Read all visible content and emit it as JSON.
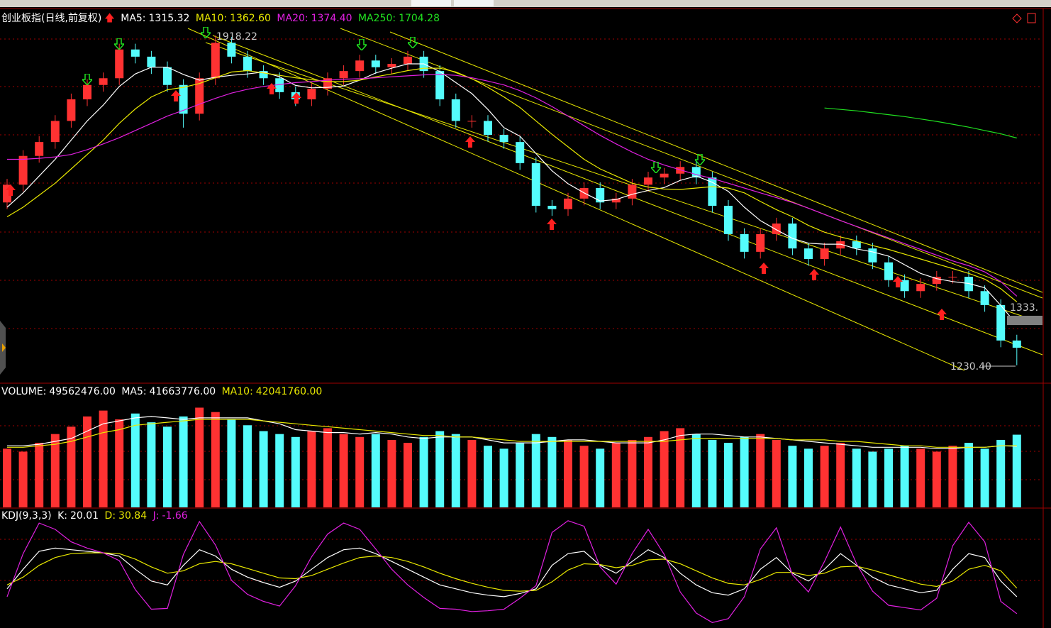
{
  "chart_data": [
    {
      "type": "candlestick",
      "title": "创业板指(日线,前复权)",
      "open": [
        1570,
        1607,
        1667,
        1696,
        1740,
        1785,
        1815,
        1829,
        1889,
        1874,
        1852,
        1815,
        1755,
        1829,
        1903,
        1874,
        1844,
        1829,
        1800,
        1785,
        1807,
        1829,
        1844,
        1866,
        1852,
        1859,
        1874,
        1844,
        1785,
        1740,
        1740,
        1711,
        1696,
        1652,
        1563,
        1556,
        1578,
        1600,
        1570,
        1578,
        1607,
        1622,
        1630,
        1644,
        1622,
        1563,
        1504,
        1467,
        1504,
        1526,
        1474,
        1452,
        1474,
        1489,
        1474,
        1445,
        1408,
        1385,
        1400,
        1415,
        1415,
        1385,
        1356,
        1282
      ],
      "high": [
        1619,
        1679,
        1708,
        1752,
        1797,
        1827,
        1841,
        1901,
        1901,
        1886,
        1864,
        1827,
        1841,
        1918.22,
        1915,
        1886,
        1856,
        1841,
        1812,
        1819,
        1841,
        1856,
        1878,
        1878,
        1871,
        1886,
        1886,
        1856,
        1797,
        1752,
        1752,
        1723,
        1708,
        1664,
        1575,
        1590,
        1612,
        1612,
        1590,
        1619,
        1634,
        1642,
        1656,
        1656,
        1634,
        1575,
        1516,
        1516,
        1538,
        1538,
        1486,
        1486,
        1501,
        1501,
        1486,
        1457,
        1420,
        1412,
        1427,
        1427,
        1427,
        1397,
        1368,
        1294
      ],
      "low": [
        1556,
        1593,
        1653,
        1682,
        1726,
        1771,
        1801,
        1815,
        1860,
        1838,
        1801,
        1726,
        1741,
        1815,
        1860,
        1830,
        1815,
        1786,
        1771,
        1771,
        1793,
        1815,
        1830,
        1838,
        1838,
        1845,
        1830,
        1771,
        1726,
        1726,
        1697,
        1682,
        1638,
        1549,
        1542,
        1542,
        1564,
        1556,
        1556,
        1564,
        1593,
        1608,
        1616,
        1608,
        1549,
        1490,
        1453,
        1453,
        1490,
        1460,
        1438,
        1438,
        1460,
        1460,
        1431,
        1394,
        1371,
        1371,
        1386,
        1401,
        1371,
        1342,
        1268,
        1230.4
      ],
      "close": [
        1607,
        1667,
        1696,
        1740,
        1785,
        1815,
        1829,
        1889,
        1874,
        1852,
        1815,
        1755,
        1829,
        1903,
        1874,
        1844,
        1829,
        1800,
        1785,
        1807,
        1829,
        1844,
        1866,
        1852,
        1859,
        1874,
        1844,
        1785,
        1740,
        1740,
        1711,
        1696,
        1652,
        1563,
        1556,
        1578,
        1600,
        1570,
        1578,
        1607,
        1622,
        1630,
        1644,
        1622,
        1563,
        1504,
        1467,
        1504,
        1526,
        1474,
        1452,
        1474,
        1489,
        1474,
        1445,
        1408,
        1385,
        1400,
        1415,
        1415,
        1385,
        1356,
        1282,
        1267
      ],
      "up_color": "#ff3232",
      "down_color": "#54fcfc",
      "ylim": [
        1193,
        1970
      ],
      "series": [
        {
          "name": "MA5:",
          "color": "#ffffff",
          "values": [
            1560,
            1590,
            1625,
            1660,
            1700,
            1740,
            1773,
            1812,
            1838,
            1852,
            1852,
            1837,
            1825,
            1831,
            1835,
            1838,
            1842,
            1832,
            1814,
            1809,
            1810,
            1813,
            1825,
            1840,
            1850,
            1859,
            1859,
            1843,
            1820,
            1797,
            1764,
            1726,
            1708,
            1672,
            1636,
            1609,
            1590,
            1573,
            1576,
            1587,
            1595,
            1601,
            1616,
            1625,
            1612,
            1593,
            1560,
            1532,
            1513,
            1495,
            1485,
            1483,
            1483,
            1473,
            1467,
            1458,
            1440,
            1422,
            1411,
            1405,
            1401,
            1392,
            1355,
            1315.32
          ]
        },
        {
          "name": "MA10:",
          "color": "#e8e800",
          "values": [
            1540,
            1560,
            1585,
            1610,
            1640,
            1670,
            1700,
            1735,
            1765,
            1790,
            1805,
            1810,
            1818,
            1830,
            1842,
            1845,
            1840,
            1835,
            1830,
            1826,
            1822,
            1822,
            1825,
            1832,
            1838,
            1845,
            1850,
            1850,
            1842,
            1828,
            1810,
            1790,
            1768,
            1740,
            1712,
            1686,
            1660,
            1640,
            1625,
            1610,
            1602,
            1598,
            1597,
            1600,
            1603,
            1600,
            1590,
            1572,
            1555,
            1540,
            1522,
            1508,
            1498,
            1490,
            1480,
            1472,
            1462,
            1452,
            1442,
            1432,
            1422,
            1410,
            1390,
            1362.6
          ]
        },
        {
          "name": "MA20:",
          "color": "#e020e0",
          "values": [
            1660,
            1660,
            1662,
            1665,
            1670,
            1680,
            1692,
            1705,
            1720,
            1735,
            1750,
            1762,
            1775,
            1787,
            1798,
            1806,
            1812,
            1816,
            1820,
            1822,
            1825,
            1827,
            1828,
            1830,
            1832,
            1834,
            1836,
            1837,
            1835,
            1830,
            1823,
            1815,
            1803,
            1788,
            1770,
            1750,
            1730,
            1710,
            1692,
            1675,
            1660,
            1648,
            1638,
            1628,
            1620,
            1610,
            1600,
            1590,
            1580,
            1570,
            1558,
            1545,
            1532,
            1520,
            1508,
            1496,
            1484,
            1472,
            1460,
            1448,
            1438,
            1425,
            1405,
            1374.4
          ]
        },
        {
          "name": "MA250:",
          "color": "#20e020",
          "values": [
            null,
            null,
            null,
            null,
            null,
            null,
            null,
            null,
            null,
            null,
            null,
            null,
            null,
            null,
            null,
            null,
            null,
            null,
            null,
            null,
            null,
            null,
            null,
            null,
            null,
            null,
            null,
            null,
            null,
            null,
            null,
            null,
            null,
            null,
            null,
            null,
            null,
            null,
            null,
            null,
            null,
            null,
            null,
            null,
            null,
            null,
            null,
            null,
            null,
            null,
            null,
            1767,
            1764,
            1761,
            1757,
            1753,
            1749,
            1744,
            1739,
            1733,
            1727,
            1720,
            1713,
            1704.28
          ]
        }
      ],
      "readouts": [
        1315.32,
        {
          "value": 1362.6,
          "label": "1362.60"
        },
        {
          "value": 1374.4,
          "label": "1374.40"
        },
        1704.28
      ],
      "annotations": [
        "1918.22",
        "1230.40",
        "1333."
      ]
    },
    {
      "type": "bar",
      "title": "VOLUME:",
      "values": [
        40000000,
        38000000,
        44000000,
        50000000,
        55000000,
        62000000,
        66000000,
        60000000,
        64000000,
        58000000,
        55000000,
        62000000,
        68000000,
        65000000,
        60000000,
        56000000,
        52000000,
        50000000,
        48000000,
        52000000,
        54000000,
        50000000,
        48000000,
        50000000,
        46000000,
        44000000,
        48000000,
        52000000,
        50000000,
        46000000,
        42000000,
        40000000,
        44000000,
        50000000,
        48000000,
        46000000,
        42000000,
        40000000,
        44000000,
        46000000,
        48000000,
        52000000,
        54000000,
        50000000,
        46000000,
        44000000,
        48000000,
        50000000,
        46000000,
        42000000,
        40000000,
        42000000,
        44000000,
        40000000,
        38000000,
        40000000,
        42000000,
        40000000,
        38000000,
        42000000,
        44000000,
        40000000,
        46000000,
        49562476
      ],
      "ylim": [
        0,
        75000000
      ],
      "series": [
        {
          "name": "MA5:",
          "color": "#ffffff",
          "values": [
            42000000,
            42000000,
            43000000,
            45000000,
            47000000,
            52000000,
            57000000,
            59000000,
            61000000,
            62000000,
            61000000,
            60000000,
            61000000,
            61000000,
            61000000,
            61000000,
            59000000,
            57000000,
            53000000,
            52000000,
            51000000,
            51000000,
            50000000,
            51000000,
            50000000,
            48000000,
            47000000,
            48000000,
            48000000,
            48000000,
            46000000,
            44000000,
            44000000,
            44000000,
            45000000,
            46000000,
            46000000,
            45000000,
            44000000,
            44000000,
            44000000,
            46000000,
            49000000,
            50000000,
            50000000,
            49000000,
            48000000,
            48000000,
            47000000,
            46000000,
            45000000,
            44000000,
            43000000,
            42000000,
            41000000,
            41000000,
            41000000,
            41000000,
            40000000,
            40000000,
            41000000,
            41000000,
            42000000,
            41663776
          ]
        },
        {
          "name": "MA10:",
          "color": "#e8e800",
          "values": [
            41000000,
            41000000,
            42000000,
            43000000,
            45000000,
            48000000,
            51000000,
            53000000,
            56000000,
            57000000,
            58000000,
            59000000,
            60000000,
            60000000,
            60000000,
            60000000,
            59000000,
            58000000,
            57000000,
            56000000,
            55000000,
            54000000,
            53000000,
            52000000,
            51000000,
            50000000,
            49000000,
            49000000,
            48000000,
            48000000,
            47000000,
            46000000,
            45000000,
            45000000,
            45000000,
            45000000,
            45000000,
            45000000,
            45000000,
            45000000,
            45000000,
            45000000,
            46000000,
            47000000,
            47000000,
            47000000,
            47000000,
            47000000,
            47000000,
            46000000,
            46000000,
            46000000,
            45000000,
            45000000,
            44000000,
            43000000,
            42000000,
            42000000,
            41000000,
            41000000,
            41000000,
            41000000,
            42000000,
            42041760
          ]
        }
      ],
      "readouts": [
        {
          "value": 49562476,
          "label": "49562476.00"
        },
        {
          "value": 41663776,
          "label": "41663776.00"
        },
        {
          "value": 42041760,
          "label": "42041760.00"
        }
      ]
    },
    {
      "type": "line",
      "title": "KDJ(9,3,3)",
      "ylim": [
        -20,
        125
      ],
      "series": [
        {
          "name": "K:",
          "color": "#ffffff",
          "values": [
            30,
            55,
            78,
            82,
            80,
            78,
            76,
            72,
            55,
            40,
            35,
            60,
            80,
            72,
            55,
            45,
            38,
            32,
            40,
            55,
            70,
            80,
            82,
            75,
            65,
            55,
            45,
            35,
            30,
            25,
            22,
            20,
            24,
            30,
            60,
            75,
            78,
            60,
            50,
            65,
            80,
            70,
            50,
            35,
            25,
            22,
            30,
            55,
            70,
            50,
            40,
            55,
            75,
            60,
            45,
            35,
            30,
            25,
            28,
            55,
            75,
            70,
            40,
            20.01
          ]
        },
        {
          "name": "D:",
          "color": "#e8e800",
          "values": [
            35,
            45,
            60,
            70,
            75,
            76,
            76,
            75,
            68,
            58,
            50,
            53,
            62,
            65,
            62,
            56,
            50,
            44,
            43,
            47,
            55,
            63,
            70,
            72,
            70,
            65,
            58,
            50,
            43,
            37,
            32,
            28,
            27,
            28,
            39,
            54,
            62,
            61,
            57,
            60,
            67,
            68,
            62,
            53,
            44,
            37,
            35,
            42,
            51,
            51,
            47,
            50,
            58,
            59,
            54,
            48,
            42,
            36,
            33,
            40,
            55,
            60,
            53,
            30.84
          ]
        },
        {
          "name": "J:",
          "color": "#e020e0",
          "values": [
            20,
            75,
            114,
            106,
            90,
            82,
            76,
            66,
            29,
            4,
            5,
            74,
            116,
            86,
            41,
            23,
            14,
            8,
            34,
            71,
            100,
            114,
            106,
            81,
            55,
            35,
            19,
            5,
            4,
            1,
            2,
            4,
            18,
            34,
            102,
            117,
            110,
            58,
            36,
            75,
            106,
            74,
            26,
            -1,
            -13,
            -8,
            20,
            81,
            108,
            48,
            26,
            65,
            109,
            62,
            27,
            9,
            6,
            3,
            18,
            85,
            115,
            90,
            14,
            -1.66
          ]
        }
      ]
    }
  ]
}
